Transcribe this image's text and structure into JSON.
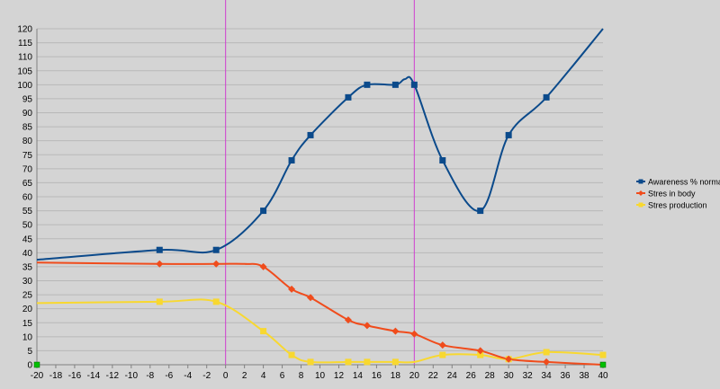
{
  "chart_data": {
    "type": "line",
    "xlim": [
      -20,
      40
    ],
    "ylim": [
      0,
      120
    ],
    "x_ticks": [
      -20,
      -18,
      -16,
      -14,
      -12,
      -10,
      -8,
      -6,
      -4,
      -2,
      0,
      2,
      4,
      6,
      8,
      10,
      12,
      14,
      16,
      18,
      20,
      22,
      24,
      26,
      28,
      30,
      32,
      34,
      36,
      38,
      40
    ],
    "y_ticks": [
      0,
      5,
      10,
      15,
      20,
      25,
      30,
      35,
      40,
      45,
      50,
      55,
      60,
      65,
      70,
      75,
      80,
      85,
      90,
      95,
      100,
      105,
      110,
      115,
      120
    ],
    "grid": true,
    "legend_position": "right",
    "vertical_markers": [
      0,
      20
    ],
    "colors": {
      "background": "#d4d4d4",
      "grid": "#b8b8b8",
      "axis": "#808080",
      "marker_line": "#d040d0",
      "endpoint_marker": "#00c000"
    },
    "series": [
      {
        "name": "Awareness % normal",
        "color": "#0b4a8b",
        "marker": "square",
        "points": [
          [
            -20,
            37.5
          ],
          [
            -7,
            41
          ],
          [
            -1,
            41
          ],
          [
            4,
            55
          ],
          [
            7,
            73
          ],
          [
            9,
            82
          ],
          [
            13,
            95.5
          ],
          [
            15,
            100
          ],
          [
            18,
            100
          ],
          [
            19,
            102
          ],
          [
            20,
            100
          ],
          [
            23,
            73
          ],
          [
            27,
            55
          ],
          [
            30,
            82
          ],
          [
            34,
            95.5
          ],
          [
            40,
            120
          ]
        ],
        "marker_points": [
          [
            -7,
            41
          ],
          [
            -1,
            41
          ],
          [
            4,
            55
          ],
          [
            7,
            73
          ],
          [
            9,
            82
          ],
          [
            13,
            95.5
          ],
          [
            15,
            100
          ],
          [
            18,
            100
          ],
          [
            20,
            100
          ],
          [
            23,
            73
          ],
          [
            27,
            55
          ],
          [
            30,
            82
          ],
          [
            34,
            95.5
          ]
        ]
      },
      {
        "name": "Stres in body",
        "color": "#f04c1c",
        "marker": "diamond",
        "points": [
          [
            -20,
            36.5
          ],
          [
            -7,
            36
          ],
          [
            -1,
            36
          ],
          [
            2,
            36
          ],
          [
            4,
            35
          ],
          [
            7,
            27
          ],
          [
            9,
            24
          ],
          [
            13,
            16
          ],
          [
            15,
            14
          ],
          [
            18,
            12
          ],
          [
            20,
            11
          ],
          [
            23,
            7
          ],
          [
            27,
            5
          ],
          [
            30,
            2
          ],
          [
            34,
            1
          ],
          [
            40,
            0
          ]
        ],
        "marker_points": [
          [
            -7,
            36
          ],
          [
            -1,
            36
          ],
          [
            4,
            35
          ],
          [
            7,
            27
          ],
          [
            9,
            24
          ],
          [
            13,
            16
          ],
          [
            15,
            14
          ],
          [
            18,
            12
          ],
          [
            20,
            11
          ],
          [
            23,
            7
          ],
          [
            27,
            5
          ],
          [
            30,
            2
          ],
          [
            34,
            1
          ]
        ]
      },
      {
        "name": "Stres production",
        "color": "#f8d830",
        "marker": "square",
        "points": [
          [
            -20,
            22
          ],
          [
            -7,
            22.5
          ],
          [
            -1,
            22.5
          ],
          [
            4,
            12
          ],
          [
            7,
            3.5
          ],
          [
            9,
            1
          ],
          [
            13,
            1
          ],
          [
            15,
            1
          ],
          [
            18,
            1
          ],
          [
            20,
            1
          ],
          [
            23,
            3.5
          ],
          [
            27,
            3.5
          ],
          [
            30,
            2
          ],
          [
            34,
            4.5
          ],
          [
            40,
            3.5
          ]
        ],
        "marker_points": [
          [
            -7,
            22.5
          ],
          [
            -1,
            22.5
          ],
          [
            4,
            12
          ],
          [
            7,
            3.5
          ],
          [
            9,
            1
          ],
          [
            13,
            1
          ],
          [
            15,
            1
          ],
          [
            18,
            1
          ],
          [
            23,
            3.5
          ],
          [
            27,
            3.5
          ],
          [
            30,
            2
          ],
          [
            34,
            4.5
          ],
          [
            40,
            3.5
          ]
        ]
      }
    ],
    "endpoint_markers": [
      [
        -20,
        0
      ],
      [
        40,
        0
      ]
    ]
  }
}
